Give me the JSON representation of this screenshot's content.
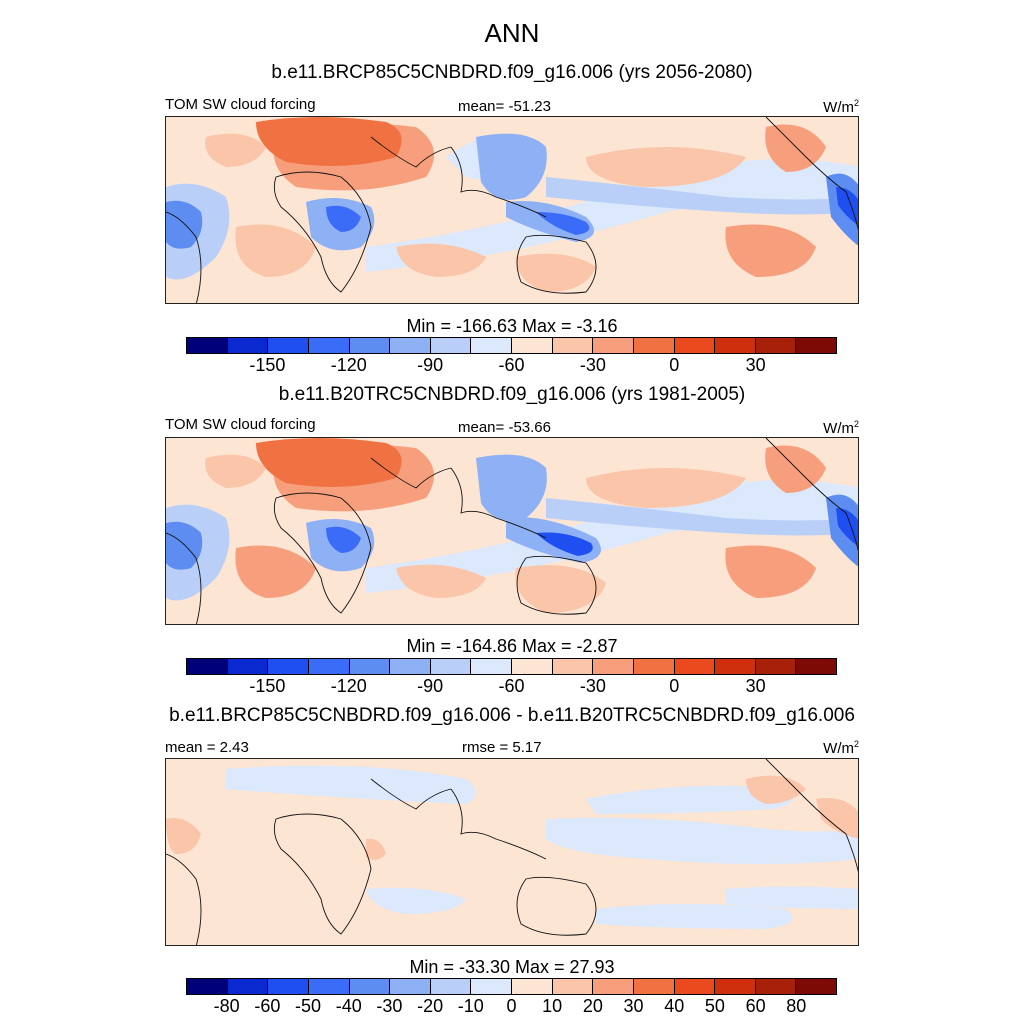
{
  "figure": {
    "title": "ANN"
  },
  "panels": [
    {
      "title": "b.e11.BRCP85C5CNBDRD.f09_g16.006 (yrs 2056-2080)",
      "left_label": "TOM SW cloud forcing",
      "center_label": "mean= -51.23",
      "units_base": "W/m",
      "units_sup": "2",
      "minmax": "Min = -166.63 Max =  -3.16",
      "colorbar_ticks": [
        "-150",
        "-120",
        "-90",
        "-60",
        "-30",
        "0",
        "30"
      ],
      "colorbar_levels": [
        -165,
        -150,
        -135,
        -120,
        -105,
        -90,
        -75,
        -60,
        -45,
        -30,
        -15,
        0,
        15,
        30,
        45
      ]
    },
    {
      "title": "b.e11.B20TRC5CNBDRD.f09_g16.006 (yrs 1981-2005)",
      "left_label": "TOM SW cloud forcing",
      "center_label": "mean= -53.66",
      "units_base": "W/m",
      "units_sup": "2",
      "minmax": "Min = -164.86 Max =  -2.87",
      "colorbar_ticks": [
        "-150",
        "-120",
        "-90",
        "-60",
        "-30",
        "0",
        "30"
      ],
      "colorbar_levels": [
        -165,
        -150,
        -135,
        -120,
        -105,
        -90,
        -75,
        -60,
        -45,
        -30,
        -15,
        0,
        15,
        30,
        45
      ]
    },
    {
      "title": "b.e11.BRCP85C5CNBDRD.f09_g16.006 - b.e11.B20TRC5CNBDRD.f09_g16.006",
      "left_label": "mean =   2.43",
      "center_label": "rmse =   5.17",
      "units_base": "W/m",
      "units_sup": "2",
      "minmax": "Min = -33.30 Max =  27.93",
      "colorbar_ticks": [
        "-80",
        "-60",
        "-50",
        "-40",
        "-30",
        "-20",
        "-10",
        "0",
        "10",
        "20",
        "30",
        "40",
        "50",
        "60",
        "80"
      ],
      "colorbar_levels": [
        -80,
        -60,
        -50,
        -40,
        -30,
        -20,
        -10,
        0,
        10,
        20,
        30,
        40,
        50,
        60,
        80
      ]
    }
  ],
  "palette": [
    "#00007a",
    "#0a2ad0",
    "#1f4ff0",
    "#3a6cf8",
    "#5d8df0",
    "#8eb0f4",
    "#b9cff8",
    "#dce8fb",
    "#fde5d4",
    "#fac5a8",
    "#f79f7c",
    "#f07243",
    "#ea4a1e",
    "#cf2f0c",
    "#a8200a",
    "#7d0a04"
  ]
}
